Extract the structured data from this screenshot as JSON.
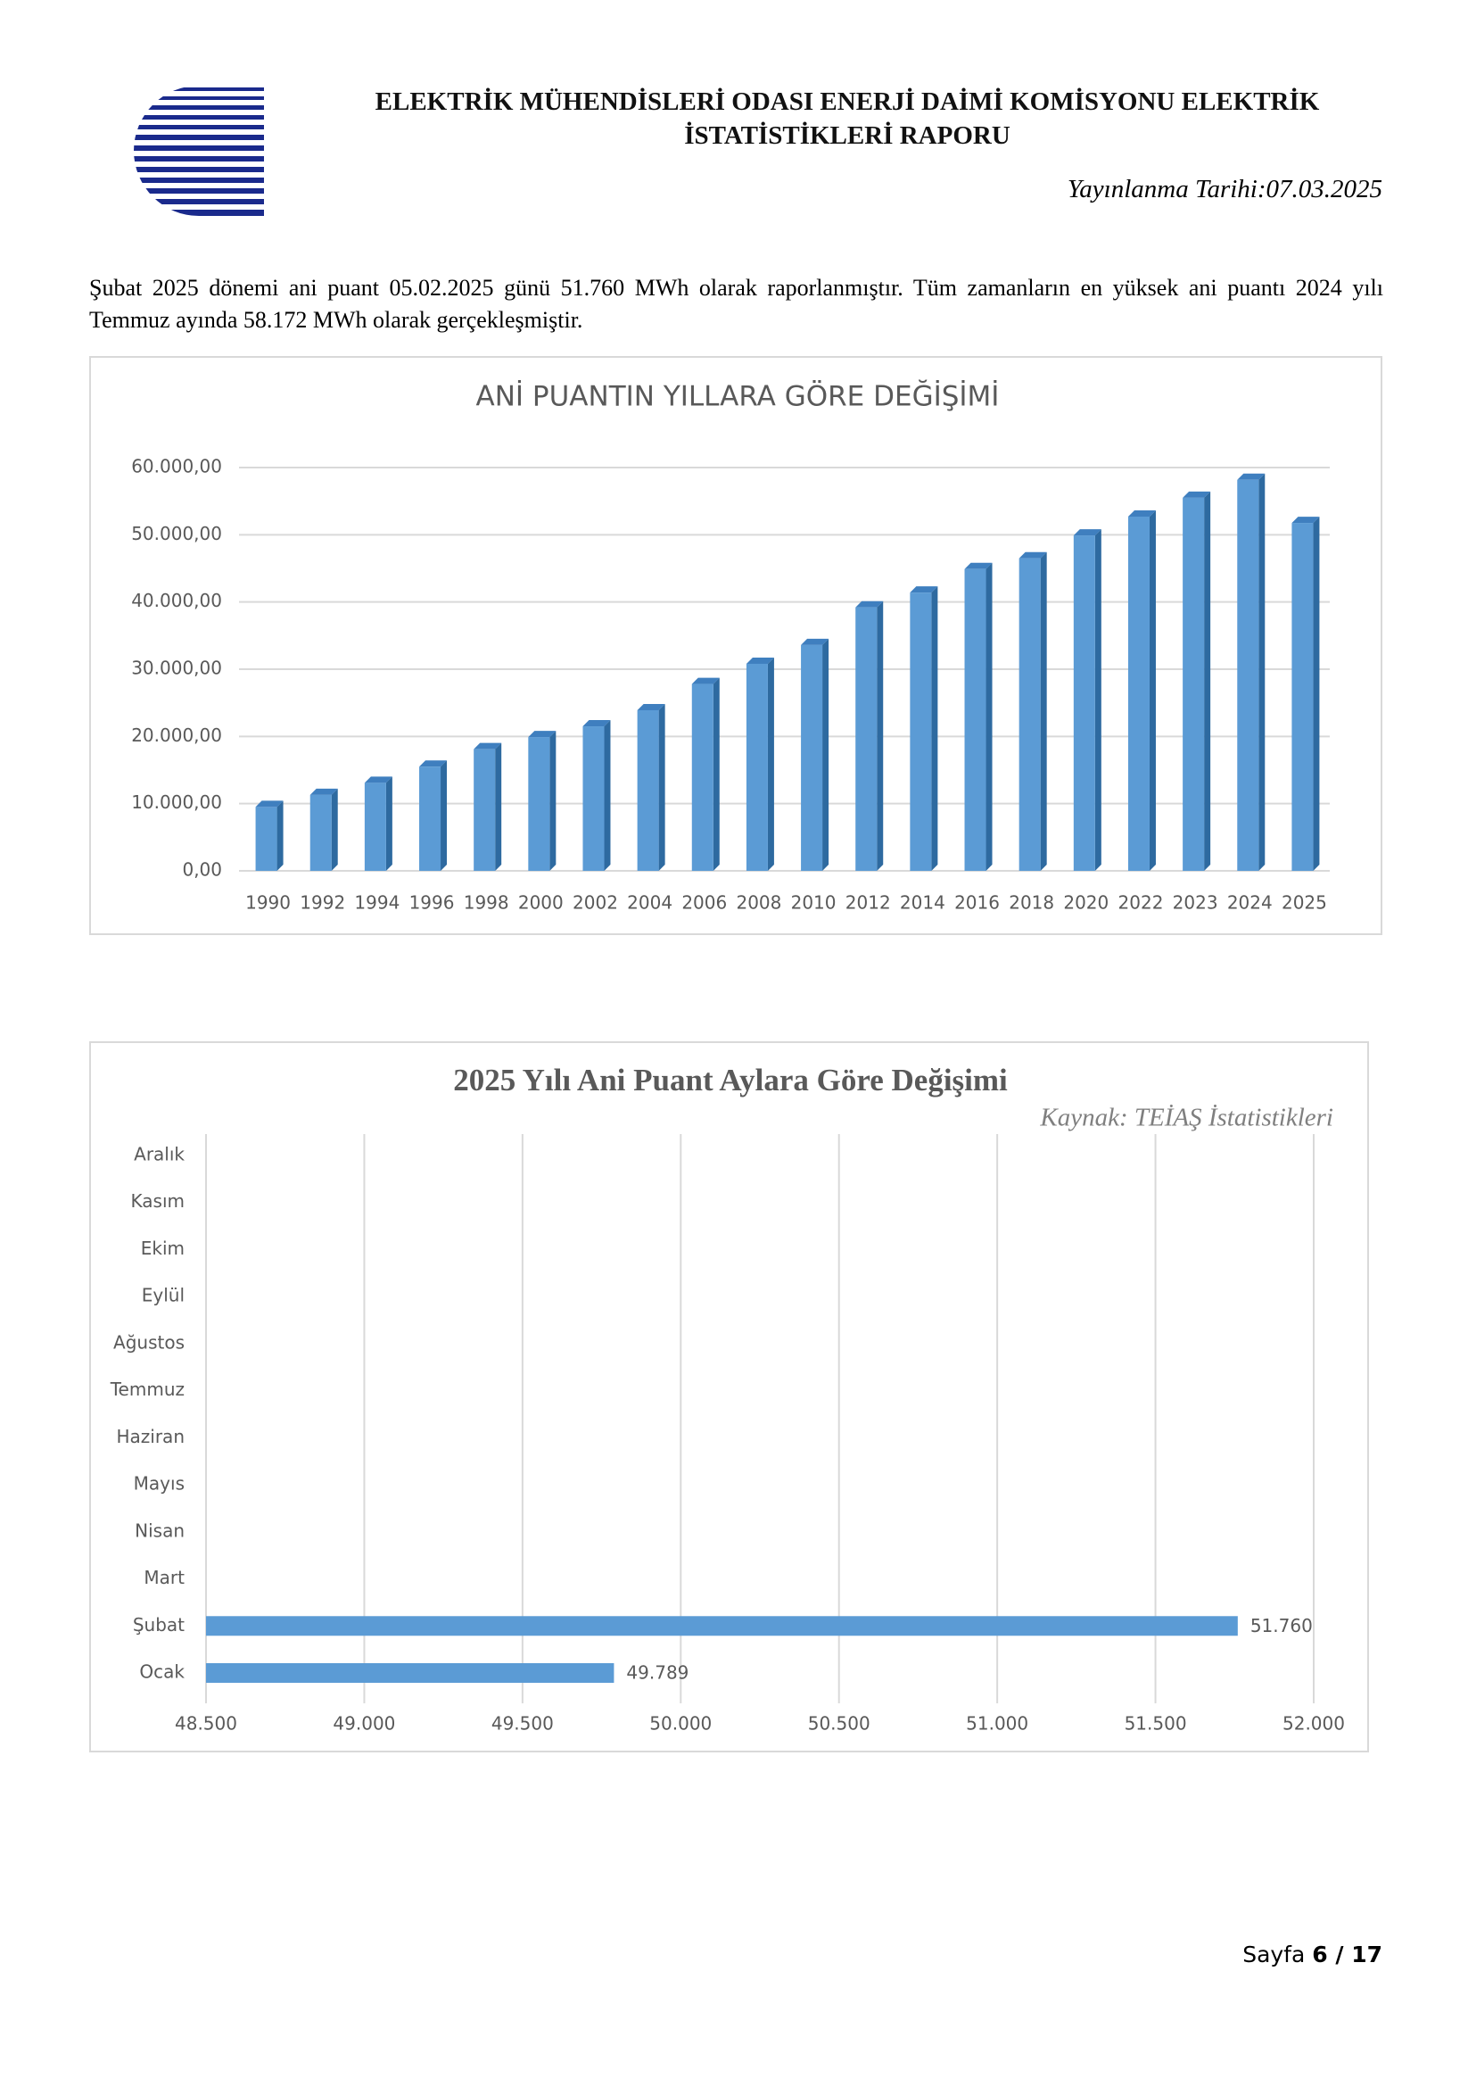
{
  "header": {
    "title_line1": "ELEKTRİK MÜHENDİSLERİ ODASI ENERJİ DAİMİ KOMİSYONU ELEKTRİK",
    "title_line2": "İSTATİSTİKLERİ RAPORU",
    "date": "Yayınlanma Tarihi:07.03.2025"
  },
  "paragraph": "Şubat 2025 dönemi ani puant 05.02.2025 günü 51.760 MWh olarak raporlanmıştır. Tüm zamanların en yüksek ani puantı 2024 yılı Temmuz ayında 58.172 MWh olarak gerçekleşmiştir.",
  "chart_data": [
    {
      "type": "bar",
      "title": "ANİ PUANTIN YILLARA GÖRE DEĞİŞİMİ",
      "color": "#5b9bd5",
      "grid": true,
      "categories": [
        "1990",
        "1992",
        "1994",
        "1996",
        "1998",
        "2000",
        "2002",
        "2004",
        "2006",
        "2008",
        "2010",
        "2012",
        "2014",
        "2016",
        "2018",
        "2020",
        "2022",
        "2023",
        "2024",
        "2025"
      ],
      "values": [
        9500,
        11300,
        13100,
        15500,
        18100,
        19900,
        21500,
        23900,
        27800,
        30800,
        33600,
        39200,
        41400,
        44900,
        46500,
        49900,
        52700,
        55500,
        58172,
        51760
      ],
      "ylim": [
        0,
        60000
      ],
      "yticks": [
        {
          "value": 0,
          "label": "0,00"
        },
        {
          "value": 10000,
          "label": "10.000,00"
        },
        {
          "value": 20000,
          "label": "20.000,00"
        },
        {
          "value": 30000,
          "label": "30.000,00"
        },
        {
          "value": 40000,
          "label": "40.000,00"
        },
        {
          "value": 50000,
          "label": "50.000,00"
        },
        {
          "value": 60000,
          "label": "60.000,00"
        }
      ]
    },
    {
      "type": "hbar",
      "title": "2025 Yılı Ani Puant Aylara Göre Değişimi",
      "subtitle": "Kaynak: TEİAŞ İstatistikleri",
      "color": "#5b9bd5",
      "grid": true,
      "categories": [
        "Ocak",
        "Şubat",
        "Mart",
        "Nisan",
        "Mayıs",
        "Haziran",
        "Temmuz",
        "Ağustos",
        "Eylül",
        "Ekim",
        "Kasım",
        "Aralık"
      ],
      "values": [
        49789,
        51760,
        null,
        null,
        null,
        null,
        null,
        null,
        null,
        null,
        null,
        null
      ],
      "value_labels": [
        "49.789",
        "51.760",
        null,
        null,
        null,
        null,
        null,
        null,
        null,
        null,
        null,
        null
      ],
      "xlim": [
        48500,
        52000
      ],
      "xticks": [
        {
          "value": 48500,
          "label": "48.500"
        },
        {
          "value": 49000,
          "label": "49.000"
        },
        {
          "value": 49500,
          "label": "49.500"
        },
        {
          "value": 50000,
          "label": "50.000"
        },
        {
          "value": 50500,
          "label": "50.500"
        },
        {
          "value": 51000,
          "label": "51.000"
        },
        {
          "value": 51500,
          "label": "51.500"
        },
        {
          "value": 52000,
          "label": "52.000"
        }
      ]
    }
  ],
  "footer": {
    "label": "Sayfa",
    "page": "6 / 17"
  }
}
